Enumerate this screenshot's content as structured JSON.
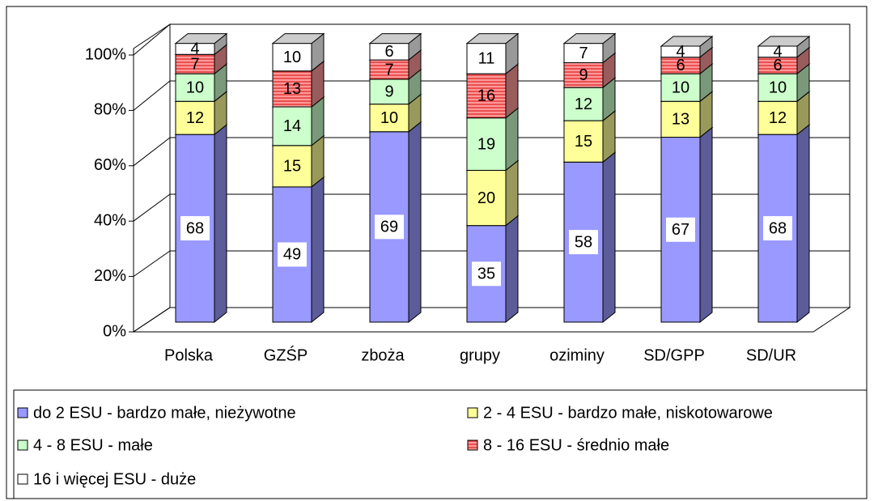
{
  "chart_data": {
    "type": "stacked_bar_3d",
    "categories": [
      "Polska",
      "GZŚP",
      "zboża",
      "grupy",
      "oziminy",
      "SD/GPP",
      "SD/UR"
    ],
    "series": [
      {
        "name": "do 2 ESU - bardzo małe, nieżywotne",
        "color": "#9999ff",
        "values": [
          68,
          49,
          69,
          35,
          58,
          67,
          68
        ]
      },
      {
        "name": "2 - 4 ESU - bardzo małe, niskotowarowe",
        "color": "#ffff99",
        "values": [
          12,
          15,
          10,
          20,
          15,
          13,
          12
        ]
      },
      {
        "name": "4 - 8 ESU - małe",
        "color": "#ccffcc",
        "values": [
          10,
          14,
          9,
          19,
          12,
          10,
          10
        ]
      },
      {
        "name": "8 - 16 ESU - średnio małe",
        "color": "#ff9999",
        "pattern": "horizontal-lines",
        "values": [
          7,
          13,
          7,
          16,
          9,
          6,
          6
        ]
      },
      {
        "name": "16 i więcej ESU - duże",
        "color": "#ffffff",
        "values": [
          4,
          10,
          6,
          11,
          7,
          4,
          4
        ]
      }
    ],
    "ylim": [
      0,
      100
    ],
    "yticks": [
      {
        "value": 0,
        "label": "0%"
      },
      {
        "value": 20,
        "label": "20%"
      },
      {
        "value": 40,
        "label": "40%"
      },
      {
        "value": 60,
        "label": "60%"
      },
      {
        "value": 80,
        "label": "80%"
      },
      {
        "value": 100,
        "label": "100%"
      }
    ],
    "grid": true,
    "legend": "bottom"
  }
}
